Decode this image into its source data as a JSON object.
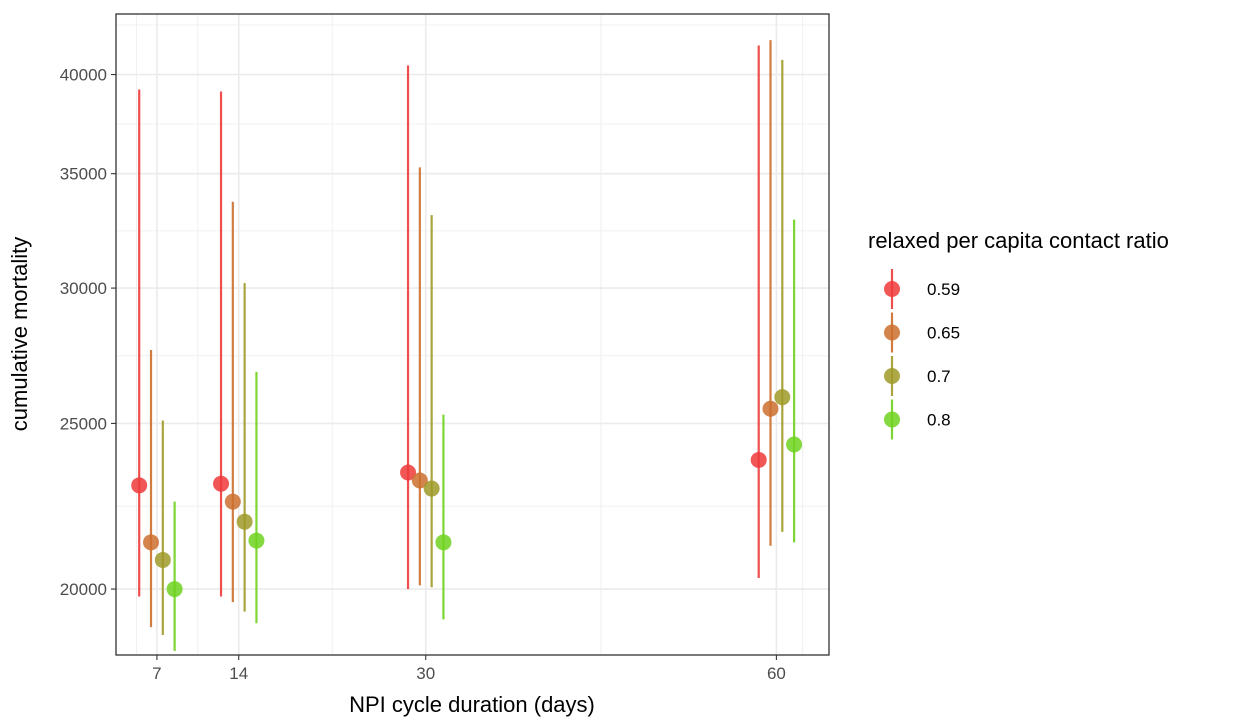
{
  "chart_data": {
    "type": "scatter",
    "subtype": "point-range",
    "xlabel": "NPI cycle duration (days)",
    "ylabel": "cumulative mortality",
    "y_scale": "log",
    "x_ticks": [
      7,
      14,
      30,
      60
    ],
    "y_ticks": [
      20000,
      25000,
      30000,
      35000,
      40000
    ],
    "xlim": [
      3.5,
      64.5
    ],
    "ylim": [
      18300,
      43400
    ],
    "grid": true,
    "legend": {
      "title": "relaxed per capita contact ratio",
      "position": "right"
    },
    "x": [
      7,
      14,
      30,
      60
    ],
    "series": [
      {
        "name": "0.59",
        "color": "#EE3A3A",
        "values": [
          23000,
          23050,
          23400,
          23800
        ],
        "lower": [
          19800,
          19800,
          20000,
          20300
        ],
        "upper": [
          39200,
          39100,
          40500,
          41600
        ]
      },
      {
        "name": "0.65",
        "color": "#CC6F2E",
        "values": [
          21300,
          22500,
          23150,
          25500
        ],
        "lower": [
          19000,
          19650,
          20100,
          21200
        ],
        "upper": [
          27600,
          33700,
          35300,
          41900
        ]
      },
      {
        "name": "0.7",
        "color": "#A09A28",
        "values": [
          20800,
          21900,
          22900,
          25900
        ],
        "lower": [
          18800,
          19400,
          20050,
          21600
        ],
        "upper": [
          25100,
          30200,
          33100,
          40800
        ]
      },
      {
        "name": "0.8",
        "color": "#6FD21E",
        "values": [
          20000,
          21350,
          21300,
          24300
        ],
        "lower": [
          18400,
          19100,
          19200,
          21300
        ],
        "upper": [
          22500,
          26800,
          25300,
          32900
        ]
      }
    ]
  }
}
